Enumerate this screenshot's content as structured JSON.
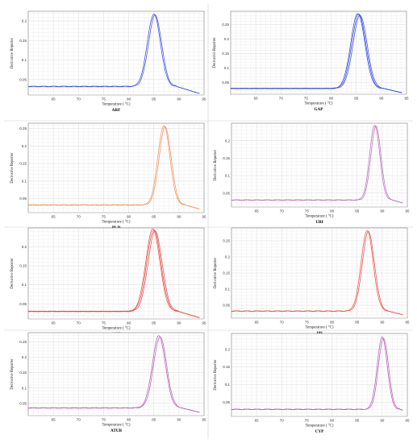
{
  "figure": {
    "background": "#ffffff"
  },
  "chart_data": [
    {
      "type": "line",
      "title": "ARF",
      "xlabel": "Temperature ( °C)",
      "ylabel": "Derivative Reporter",
      "xlim": [
        60,
        95
      ],
      "ylim": [
        0.01,
        0.225
      ],
      "xticks": [
        65,
        70,
        75,
        80,
        85,
        90,
        95
      ],
      "yticks": [
        0.05,
        0.1,
        0.15,
        0.2
      ],
      "ytick_labels": [
        "0.05",
        "0.1",
        "0.15",
        "0.2"
      ],
      "grid": true,
      "color": "#2a3fe0",
      "peak": {
        "x": 85.0,
        "y": 0.218,
        "baseline": 0.032,
        "sigma": 1.3
      },
      "series": [
        {
          "replicates": 2
        }
      ]
    },
    {
      "type": "line",
      "title": "GAP",
      "xlabel": "Temperature ( °C)",
      "ylabel": "Derivative Reporter",
      "xlim": [
        60,
        95
      ],
      "ylim": [
        0.01,
        0.295
      ],
      "xticks": [
        65,
        70,
        75,
        80,
        85,
        90,
        95
      ],
      "yticks": [
        0.05,
        0.1,
        0.15,
        0.2,
        0.25
      ],
      "ytick_labels": [
        "0.05",
        "0.1",
        "0.15",
        "0.2",
        "0.25"
      ],
      "grid": true,
      "color": "#2a3fe0",
      "peak": {
        "x": 85.5,
        "y": 0.285,
        "baseline": 0.03,
        "sigma": 1.4
      },
      "series": [
        {
          "replicates": 3
        }
      ]
    },
    {
      "type": "line",
      "title": "PLD",
      "xlabel": "Temperature ( °C)",
      "ylabel": "Derivative Reporter",
      "xlim": [
        60,
        95
      ],
      "ylim": [
        0.01,
        0.265
      ],
      "xticks": [
        65,
        70,
        75,
        80,
        85,
        90,
        95
      ],
      "yticks": [
        0.05,
        0.1,
        0.15,
        0.2,
        0.25
      ],
      "ytick_labels": [
        "0.05",
        "0.1",
        "0.15",
        "0.2",
        "0.25"
      ],
      "grid": true,
      "color": "#ef8a4c",
      "peak": {
        "x": 87.0,
        "y": 0.258,
        "baseline": 0.032,
        "sigma": 1.2
      },
      "series": [
        {
          "replicates": 2
        }
      ]
    },
    {
      "type": "line",
      "title": "UBI",
      "xlabel": "Temperature ( °C)",
      "ylabel": "Derivative Reporter",
      "xlim": [
        60,
        95
      ],
      "ylim": [
        0.01,
        0.25
      ],
      "xticks": [
        65,
        70,
        75,
        80,
        85,
        90,
        95
      ],
      "yticks": [
        0.05,
        0.1,
        0.15,
        0.2
      ],
      "ytick_labels": [
        "0.05",
        "0.1",
        "0.15",
        "0.2"
      ],
      "grid": true,
      "color": "#b065b0",
      "peak": {
        "x": 88.5,
        "y": 0.245,
        "baseline": 0.03,
        "sigma": 1.0
      },
      "series": [
        {
          "replicates": 2
        }
      ]
    },
    {
      "type": "line",
      "title": "ACT",
      "xlabel": "Temperature ( °C)",
      "ylabel": "Derivative Reporter",
      "xlim": [
        60,
        95
      ],
      "ylim": [
        0.01,
        0.25
      ],
      "xticks": [
        65,
        70,
        75,
        80,
        85,
        90,
        95
      ],
      "yticks": [
        0.05,
        0.1,
        0.15,
        0.2
      ],
      "ytick_labels": [
        "0.05",
        "0.1",
        "0.15",
        "0.2"
      ],
      "grid": true,
      "color": "#e8413a",
      "peak": {
        "x": 85.0,
        "y": 0.245,
        "baseline": 0.03,
        "sigma": 1.4
      },
      "series": [
        {
          "replicates": 3
        }
      ]
    },
    {
      "type": "line",
      "title": "18S",
      "xlabel": "Temperature ( °C)",
      "ylabel": "Derivative Reporter",
      "xlim": [
        60,
        95
      ],
      "ylim": [
        0.01,
        0.29
      ],
      "xticks": [
        65,
        70,
        75,
        80,
        85,
        90,
        95
      ],
      "yticks": [
        0.05,
        0.1,
        0.15,
        0.2,
        0.25
      ],
      "ytick_labels": [
        "0.05",
        "0.1",
        "0.15",
        "0.2",
        "0.25"
      ],
      "grid": true,
      "color": "#e8413a",
      "peak": {
        "x": 87.0,
        "y": 0.282,
        "baseline": 0.032,
        "sigma": 1.2
      },
      "series": [
        {
          "replicates": 2
        }
      ]
    },
    {
      "type": "line",
      "title": "ATUB",
      "xlabel": "Temperature ( °C)",
      "ylabel": "Derivative Reporter",
      "xlim": [
        60,
        95
      ],
      "ylim": [
        0.01,
        0.28
      ],
      "xticks": [
        65,
        70,
        75,
        80,
        85,
        90,
        95
      ],
      "yticks": [
        0.05,
        0.1,
        0.15,
        0.2,
        0.25
      ],
      "ytick_labels": [
        "0.05",
        "0.1",
        "0.15",
        "0.2",
        "0.25"
      ],
      "grid": true,
      "color": "#b04fb0",
      "peak": {
        "x": 86.0,
        "y": 0.27,
        "baseline": 0.035,
        "sigma": 1.3
      },
      "series": [
        {
          "replicates": 2
        }
      ]
    },
    {
      "type": "line",
      "title": "CYP",
      "xlabel": "Temperature ( °C)",
      "ylabel": "Derivative Reporter",
      "xlim": [
        60,
        95
      ],
      "ylim": [
        0.01,
        0.245
      ],
      "xticks": [
        65,
        70,
        75,
        80,
        85,
        90,
        95
      ],
      "yticks": [
        0.05,
        0.1,
        0.15,
        0.2
      ],
      "ytick_labels": [
        "0.05",
        "0.1",
        "0.15",
        "0.2"
      ],
      "grid": true,
      "color": "#b04fb0",
      "peak": {
        "x": 90.0,
        "y": 0.235,
        "baseline": 0.03,
        "sigma": 1.0
      },
      "series": [
        {
          "replicates": 2
        }
      ]
    }
  ]
}
